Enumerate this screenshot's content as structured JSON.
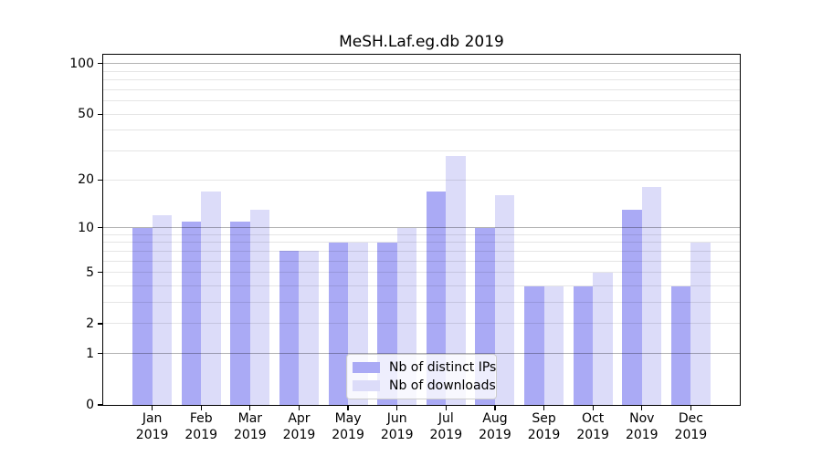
{
  "chart_data": {
    "type": "bar",
    "title": "MeSH.Laf.eg.db 2019",
    "months": [
      "Jan",
      "Feb",
      "Mar",
      "Apr",
      "May",
      "Jun",
      "Jul",
      "Aug",
      "Sep",
      "Oct",
      "Nov",
      "Dec"
    ],
    "year": "2019",
    "series": [
      {
        "name": "Nb of distinct IPs",
        "color": "#aaaaf5",
        "values": [
          10,
          11,
          11,
          7,
          8,
          8,
          17,
          10,
          4,
          4,
          13,
          4
        ]
      },
      {
        "name": "Nb of downloads",
        "color": "#dcdcf9",
        "values": [
          12,
          17,
          13,
          7,
          8,
          10,
          28,
          16,
          4,
          5,
          18,
          8
        ]
      }
    ],
    "y_axis": {
      "scale": "log1p",
      "min": 0,
      "max": 113,
      "labeled_ticks": [
        0,
        1,
        2,
        5,
        10,
        20,
        50,
        100
      ],
      "major_gridlines": [
        1,
        10,
        100
      ],
      "minor_gridlines": [
        2,
        3,
        4,
        5,
        6,
        7,
        8,
        9,
        20,
        30,
        40,
        50,
        60,
        70,
        80,
        90
      ]
    },
    "bar_width_fraction": 0.4,
    "legend_position": "lower center",
    "grid": true
  },
  "style_colors": {
    "background": "#ffffff",
    "axis_frame": "#000000",
    "text": "#000000",
    "major_grid": "rgba(0,0,0,0.30)",
    "minor_grid": "rgba(0,0,0,0.10)",
    "legend_background": "rgba(255,255,255,0.8)",
    "legend_border": "#cccccc"
  }
}
